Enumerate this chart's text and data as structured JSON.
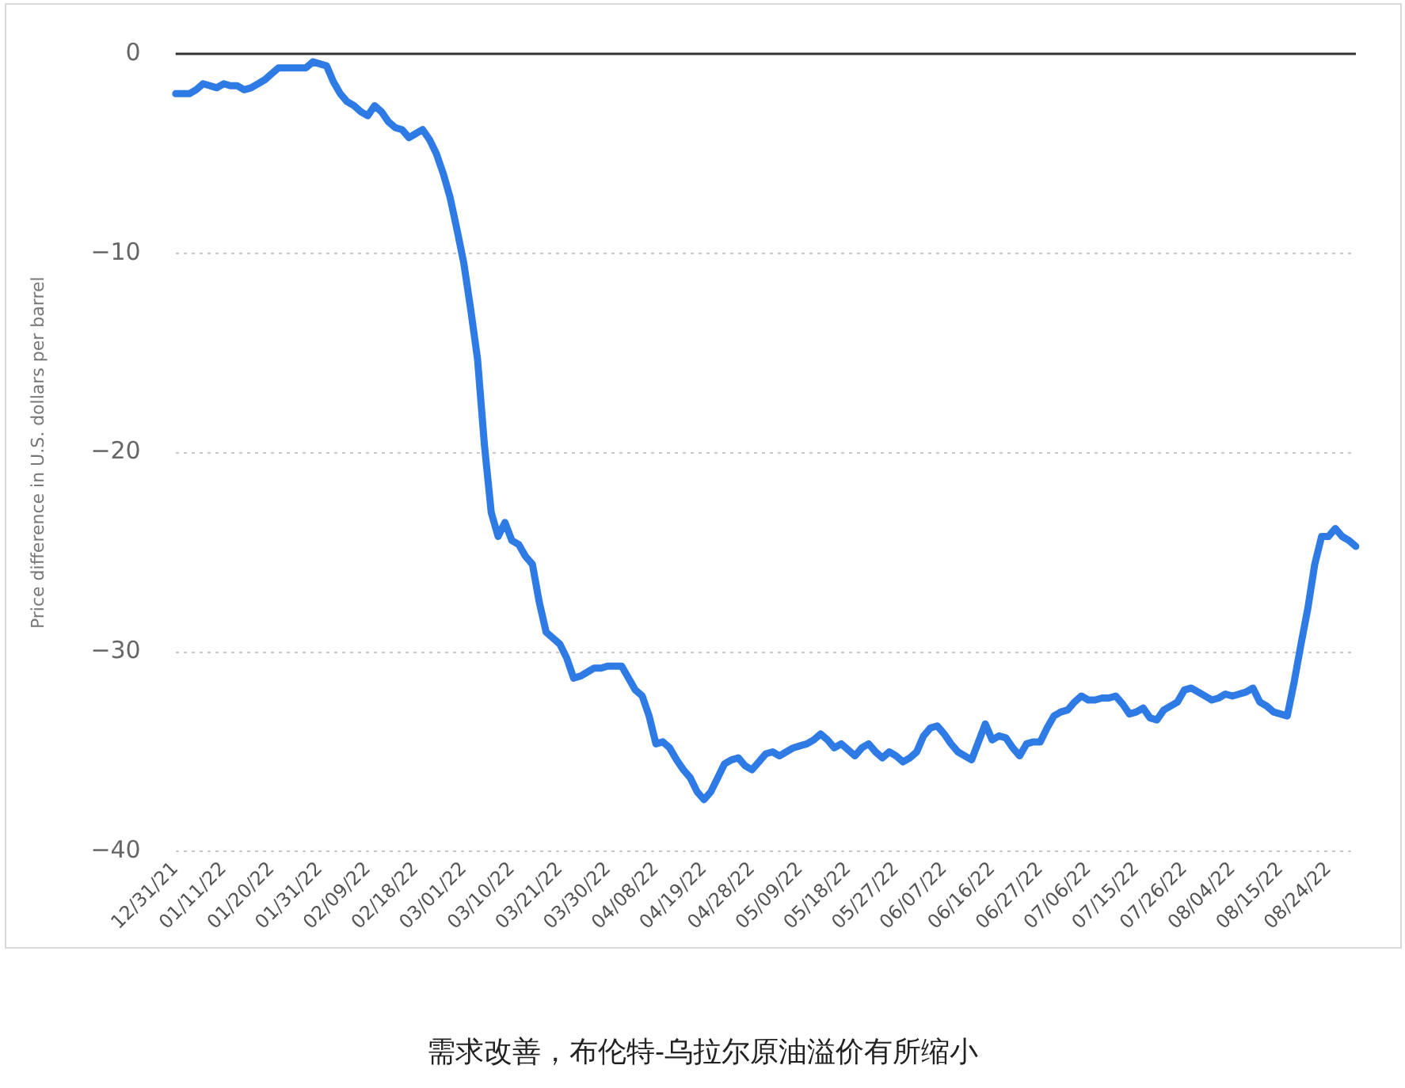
{
  "chart_data": {
    "type": "line",
    "ylabel": "Price difference in U.S. dollars per barrel",
    "annotations": [
      "需求改善，布伦特-乌拉尔原油溢价有所缩小"
    ],
    "categories": [
      "12/31/21",
      null,
      null,
      null,
      null,
      null,
      null,
      "01/11/22",
      null,
      null,
      null,
      null,
      null,
      null,
      "01/20/22",
      null,
      null,
      null,
      null,
      null,
      null,
      "01/31/22",
      null,
      null,
      null,
      null,
      null,
      null,
      "02/09/22",
      null,
      null,
      null,
      null,
      null,
      null,
      "02/18/22",
      null,
      null,
      null,
      null,
      null,
      null,
      "03/01/22",
      null,
      null,
      null,
      null,
      null,
      null,
      "03/10/22",
      null,
      null,
      null,
      null,
      null,
      null,
      "03/21/22",
      null,
      null,
      null,
      null,
      null,
      null,
      "03/30/22",
      null,
      null,
      null,
      null,
      null,
      null,
      "04/08/22",
      null,
      null,
      null,
      null,
      null,
      null,
      "04/19/22",
      null,
      null,
      null,
      null,
      null,
      null,
      "04/28/22",
      null,
      null,
      null,
      null,
      null,
      null,
      "05/09/22",
      null,
      null,
      null,
      null,
      null,
      null,
      "05/18/22",
      null,
      null,
      null,
      null,
      null,
      null,
      "05/27/22",
      null,
      null,
      null,
      null,
      null,
      null,
      "06/07/22",
      null,
      null,
      null,
      null,
      null,
      null,
      "06/16/22",
      null,
      null,
      null,
      null,
      null,
      null,
      "06/27/22",
      null,
      null,
      null,
      null,
      null,
      null,
      "07/06/22",
      null,
      null,
      null,
      null,
      null,
      null,
      "07/15/22",
      null,
      null,
      null,
      null,
      null,
      null,
      "07/26/22",
      null,
      null,
      null,
      null,
      null,
      null,
      "08/04/22",
      null,
      null,
      null,
      null,
      null,
      null,
      "08/15/22",
      null,
      null,
      null,
      null,
      null,
      null,
      "08/24/22",
      null,
      null,
      null,
      null
    ],
    "series": [
      {
        "color": "#2f7be5",
        "values": [
          -2.0,
          -2.0,
          -2.0,
          -1.8,
          -1.5,
          -1.6,
          -1.7,
          -1.5,
          -1.6,
          -1.6,
          -1.8,
          -1.7,
          -1.5,
          -1.3,
          -1.0,
          -0.7,
          -0.7,
          -0.7,
          -0.7,
          -0.7,
          -0.4,
          -0.5,
          -0.6,
          -1.4,
          -2.0,
          -2.4,
          -2.6,
          -2.9,
          -3.1,
          -2.6,
          -2.9,
          -3.4,
          -3.7,
          -3.8,
          -4.2,
          -4.0,
          -3.8,
          -4.3,
          -5.0,
          -6.0,
          -7.2,
          -8.8,
          -10.5,
          -12.8,
          -15.3,
          -19.6,
          -23.0,
          -24.2,
          -23.5,
          -24.4,
          -24.6,
          -25.2,
          -25.6,
          -27.5,
          -29.0,
          -29.3,
          -29.6,
          -30.3,
          -31.3,
          -31.2,
          -31.0,
          -30.8,
          -30.8,
          -30.7,
          -30.7,
          -30.7,
          -31.3,
          -31.9,
          -32.2,
          -33.2,
          -34.6,
          -34.5,
          -34.8,
          -35.4,
          -35.9,
          -36.3,
          -37.0,
          -37.4,
          -37.0,
          -36.3,
          -35.6,
          -35.4,
          -35.3,
          -35.7,
          -35.9,
          -35.5,
          -35.1,
          -35.0,
          -35.2,
          -35.0,
          -34.8,
          -34.7,
          -34.6,
          -34.4,
          -34.1,
          -34.4,
          -34.8,
          -34.6,
          -34.9,
          -35.2,
          -34.8,
          -34.6,
          -35.0,
          -35.3,
          -35.0,
          -35.2,
          -35.5,
          -35.3,
          -35.0,
          -34.2,
          -33.8,
          -33.7,
          -34.1,
          -34.6,
          -35.0,
          -35.2,
          -35.4,
          -34.5,
          -33.6,
          -34.4,
          -34.2,
          -34.3,
          -34.8,
          -35.2,
          -34.6,
          -34.5,
          -34.5,
          -33.8,
          -33.2,
          -33.0,
          -32.9,
          -32.5,
          -32.2,
          -32.4,
          -32.4,
          -32.3,
          -32.3,
          -32.2,
          -32.6,
          -33.1,
          -33.0,
          -32.8,
          -33.3,
          -33.4,
          -32.9,
          -32.7,
          -32.5,
          -31.9,
          -31.8,
          -32.0,
          -32.2,
          -32.4,
          -32.3,
          -32.1,
          -32.2,
          -32.1,
          -32.0,
          -31.8,
          -32.5,
          -32.7,
          -33.0,
          -33.1,
          -33.2,
          -31.5,
          -29.6,
          -27.8,
          -25.6,
          -24.2,
          -24.2,
          -23.8,
          -24.2,
          -24.4,
          -24.7
        ]
      }
    ],
    "ylim": [
      -40,
      0
    ],
    "yticks": [
      {
        "value": 0,
        "label": "0"
      },
      {
        "value": -10,
        "label": "−10"
      },
      {
        "value": -20,
        "label": "−20"
      },
      {
        "value": -30,
        "label": "−30"
      },
      {
        "value": -40,
        "label": "−40"
      }
    ],
    "ref_lines": [
      {
        "axis": "y",
        "value": 0,
        "color": "#333333"
      }
    ],
    "grid": "y",
    "legend": false,
    "marker": "none",
    "line_style": "solid"
  }
}
